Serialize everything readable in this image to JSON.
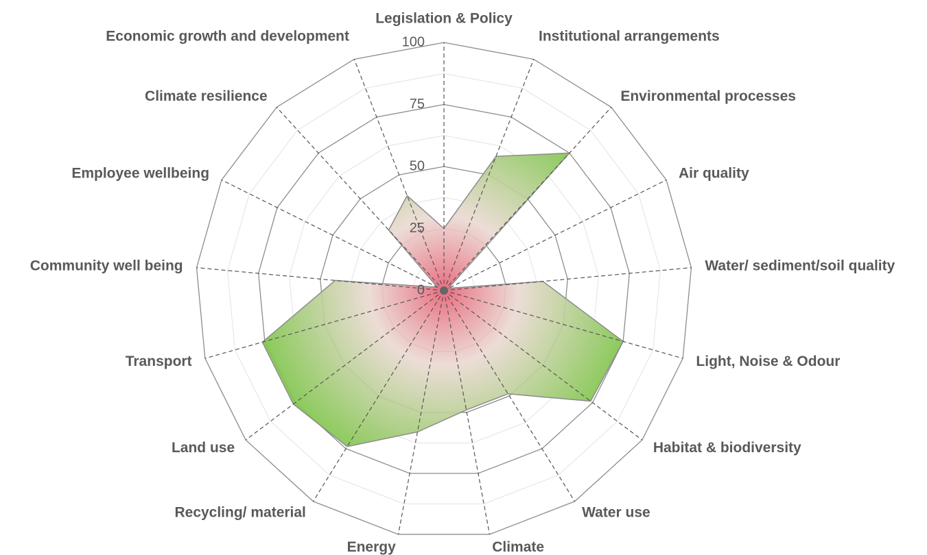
{
  "chart_data": {
    "type": "radar",
    "categories": [
      "Legislation & Policy",
      "Institutional arrangements",
      "Environmental processes",
      "Air quality",
      "Water/ sediment/soil quality",
      "Light, Noise & Odour",
      "Habitat & biodiversity",
      "Water use",
      "Climate",
      "Energy",
      "Recycling/ material",
      "Land use",
      "Transport",
      "Community well being",
      "Employee wellbeing",
      "Climate resilience",
      "Economic growth and development"
    ],
    "values": [
      25,
      58,
      75,
      2,
      40,
      75,
      74,
      49,
      49,
      58,
      74,
      76,
      76,
      44,
      3,
      33,
      41
    ],
    "ylim": [
      0,
      100
    ],
    "yticks": [
      0,
      25,
      50,
      75,
      100
    ],
    "grid": true,
    "colors": {
      "center": "#e8667a",
      "edge": "#7fc44a"
    }
  }
}
